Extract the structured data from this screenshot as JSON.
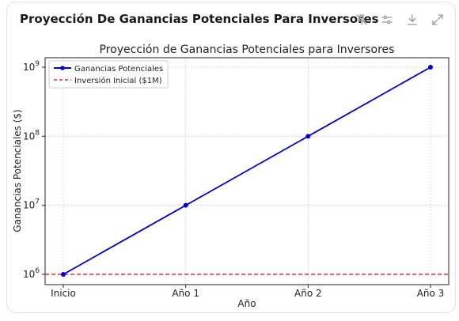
{
  "card": {
    "title": "Proyección De Ganancias Potenciales Para Inversores",
    "toolbar": [
      {
        "icon": "pin-off-icon"
      },
      {
        "icon": "sliders-icon"
      },
      {
        "icon": "download-icon"
      },
      {
        "icon": "expand-icon"
      }
    ]
  },
  "chart_data": {
    "type": "line",
    "title": "Proyección de Ganancias Potenciales para Inversores",
    "xlabel": "Año",
    "ylabel": "Ganancias Potenciales ($)",
    "categories": [
      "Inicio",
      "Año 1",
      "Año 2",
      "Año 3"
    ],
    "series": [
      {
        "name": "Ganancias Potenciales",
        "values": [
          1000000,
          10000000,
          100000000,
          1000000000
        ],
        "color": "#0000cc"
      }
    ],
    "reference_lines": [
      {
        "name": "Inversión Inicial ($1M)",
        "value": 1000000,
        "color": "#e03030",
        "style": "dashed"
      }
    ],
    "yscale": "log",
    "ylim": [
      1000000,
      1000000000
    ],
    "yticks": [
      {
        "value": 1000000,
        "base": "10",
        "exp": "6"
      },
      {
        "value": 10000000,
        "base": "10",
        "exp": "7"
      },
      {
        "value": 100000000,
        "base": "10",
        "exp": "8"
      },
      {
        "value": 1000000000,
        "base": "10",
        "exp": "9"
      }
    ],
    "grid": true,
    "legend_position": "top-left"
  }
}
